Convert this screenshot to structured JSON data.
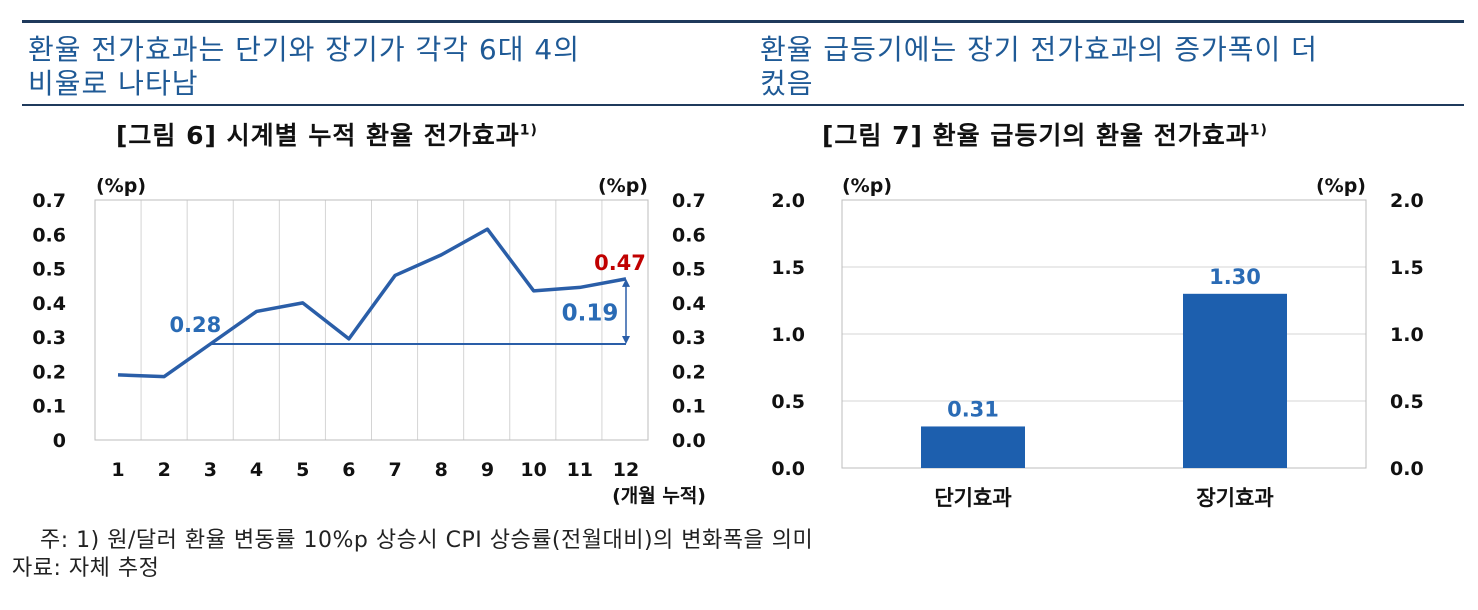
{
  "headlines": {
    "left": "환율 전가효과는 단기와 장기가 각각 6대 4의\n비율로 나타남",
    "right": "환율 급등기에는 장기 전가효과의 증가폭이 더\n컸음"
  },
  "figures": {
    "left": {
      "title": "[그림 6] 시계별 누적 환율 전가효과",
      "sup": "1)"
    },
    "right": {
      "title": "[그림 7] 환율 급등기의 환율 전가효과",
      "sup": "1)"
    }
  },
  "notes": {
    "note1": "주: 1) 원/달러 환율 변동률 10%p 상승시 CPI 상승률(전월대비)의 변화폭을 의미",
    "source": "자료: 자체 추정"
  },
  "chart_data": [
    {
      "type": "line",
      "title": "[그림 6] 시계별 누적 환율 전가효과",
      "unit_left": "(%p)",
      "unit_right": "(%p)",
      "xlabel": "(개월 누적)",
      "x": [
        1,
        2,
        3,
        4,
        5,
        6,
        7,
        8,
        9,
        10,
        11,
        12
      ],
      "series": [
        {
          "values": [
            0.19,
            0.185,
            0.28,
            0.375,
            0.4,
            0.295,
            0.48,
            0.54,
            0.615,
            0.435,
            0.445,
            0.47
          ],
          "color": "#2a5ea8"
        }
      ],
      "ylim": [
        0,
        0.7
      ],
      "yticks_left": [
        "0",
        "0.1",
        "0.2",
        "0.3",
        "0.4",
        "0.5",
        "0.6",
        "0.7"
      ],
      "yticks_right": [
        "0.0",
        "0.1",
        "0.2",
        "0.3",
        "0.4",
        "0.5",
        "0.6",
        "0.7"
      ],
      "xticks": [
        "1",
        "2",
        "3",
        "4",
        "5",
        "6",
        "7",
        "8",
        "9",
        "10",
        "11",
        "12"
      ],
      "reference_line": {
        "value": 0.28,
        "from_x": 3,
        "to_x": 12
      },
      "annotations": {
        "start_label": "0.28",
        "end_label": "0.47",
        "diff_label": "0.19",
        "end_color": "#c00000",
        "label_color": "#2a6bb5"
      },
      "grid": "vertical"
    },
    {
      "type": "bar",
      "title": "[그림 7] 환율 급등기의 환율 전가효과",
      "unit_left": "(%p)",
      "unit_right": "(%p)",
      "categories": [
        "단기효과",
        "장기효과"
      ],
      "values": [
        0.31,
        1.3
      ],
      "value_labels": [
        "0.31",
        "1.30"
      ],
      "bar_color": "#1d5fae",
      "label_color": "#2a6bb5",
      "ylim": [
        0,
        2.0
      ],
      "yticks_left": [
        "0.0",
        "0.5",
        "1.0",
        "1.5",
        "2.0"
      ],
      "yticks_right": [
        "0.0",
        "0.5",
        "1.0",
        "1.5",
        "2.0"
      ],
      "grid": "horizontal"
    }
  ]
}
